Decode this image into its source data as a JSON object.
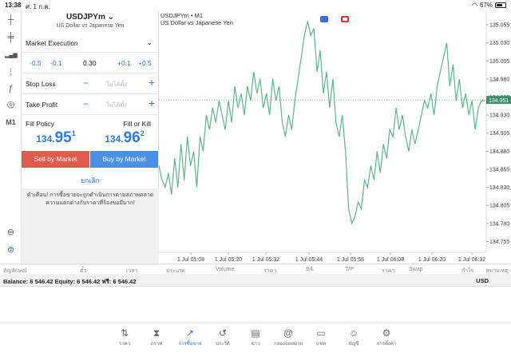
{
  "status_bar": {
    "time": "13:38",
    "date": "ศ. 1 ก.ค.",
    "battery": "67%"
  },
  "toolbar": {
    "items": [
      {
        "name": "crosshair-icon",
        "glyph": "┼"
      },
      {
        "name": "candles-icon",
        "glyph": "╪"
      },
      {
        "name": "indicators-icon",
        "glyph": "▂▄▆"
      },
      {
        "name": "settings-sliders-icon",
        "glyph": "⫶"
      },
      {
        "name": "function-icon",
        "glyph": "ƒ"
      },
      {
        "name": "objects-icon",
        "glyph": "◎"
      }
    ],
    "timeframe": "M1"
  },
  "order_panel": {
    "symbol": "USDJPYm",
    "symbol_desc": "US Dollar vs Japanese Yen",
    "execution": "Market Execution",
    "volume": {
      "minus_05": "-0.5",
      "minus_01": "-0.1",
      "value": "0.30",
      "plus_01": "+0.1",
      "plus_05": "+0.5"
    },
    "stop_loss": {
      "label": "Stop Loss",
      "placeholder": "ไม่ได้ตั้ง"
    },
    "take_profit": {
      "label": "Take Profit",
      "placeholder": "ไม่ได้ตั้ง"
    },
    "fill_policy": {
      "label": "Fill Policy",
      "value": "Fill or Kill"
    },
    "bid": {
      "prefix": "134.",
      "big": "95",
      "sup": "1"
    },
    "ask": {
      "prefix": "134.",
      "big": "96",
      "sup": "2"
    },
    "sell_label": "Sell by Market",
    "buy_label": "Buy by Market",
    "cancel_label": "ยกเลิก",
    "warning": "คำเตือน! การซื้อขายจะถูกดำเนินการตามสภาพตลาด ความแตกต่างกับราคาที่ร้องขอมีมาก!"
  },
  "chart_data": {
    "type": "line",
    "symbol": "USDJPYm • M1",
    "desc": "US Dollar vs Japanese Yen",
    "x_ticks": [
      "1 Jul 05:08",
      "1 Jul 05:20",
      "1 Jul 05:32",
      "1 Jul 05:44",
      "1 Jul 05:56",
      "1 Jul 06:08",
      "1 Jul 06:20",
      "1 Jul 06:32"
    ],
    "y_ticks": [
      "135.055",
      "135.030",
      "135.005",
      "134.980",
      "134.955",
      "134.930",
      "134.905",
      "134.880",
      "134.855",
      "134.830",
      "134.805",
      "134.780",
      "134.755"
    ],
    "ylim": [
      134.74,
      135.065
    ],
    "current_price": 134.951,
    "current_label": "134.951",
    "values": [
      134.86,
      134.84,
      134.83,
      134.85,
      134.82,
      134.87,
      134.83,
      134.89,
      134.84,
      134.9,
      134.86,
      134.88,
      134.83,
      134.9,
      134.88,
      134.93,
      134.91,
      134.94,
      134.92,
      134.95,
      134.93,
      134.91,
      134.95,
      134.92,
      134.97,
      134.94,
      134.96,
      134.93,
      134.97,
      134.95,
      134.99,
      134.96,
      134.98,
      134.94,
      134.96,
      134.93,
      134.98,
      134.95,
      134.97,
      134.92,
      134.9,
      134.93,
      134.91,
      134.95,
      134.98,
      135.01,
      135.04,
      135.06,
      135.04,
      135.05,
      134.99,
      135.02,
      134.96,
      134.99,
      134.94,
      134.98,
      134.92,
      134.9,
      134.93,
      134.88,
      134.8,
      134.78,
      134.79,
      134.81,
      134.8,
      134.84,
      134.83,
      134.86,
      134.84,
      134.88,
      134.85,
      134.89,
      134.87,
      134.91,
      134.9,
      134.94,
      134.91,
      134.93,
      134.9,
      134.88,
      134.91,
      134.89,
      134.91,
      134.93,
      134.95,
      134.94,
      134.96,
      134.93,
      134.97,
      134.99,
      135.01,
      135.03,
      134.97,
      135.0,
      134.95,
      134.98,
      134.94,
      134.96,
      134.93,
      134.95,
      134.91,
      134.94,
      134.95,
      134.95
    ]
  },
  "trade_columns": [
    "สัญลักษณ์",
    "ตั๋ว",
    "เวลา",
    "ประเภท",
    "Volume",
    "ราคา",
    "S/L",
    "T/P",
    "ราคา",
    "Swap",
    "กำไร",
    "หมายเหตุ"
  ],
  "balance": {
    "text": "Balance: 6 546.42 Equity: 6 546.42 ฟรี: 6 546.42",
    "currency": "USD"
  },
  "tabs": [
    {
      "name": "quotes",
      "icon": "⇅",
      "label": "ราคา"
    },
    {
      "name": "chart",
      "icon": "⧗",
      "label": "กราฟ"
    },
    {
      "name": "trade",
      "icon": "↗",
      "label": "การซื้อขาย"
    },
    {
      "name": "history",
      "icon": "↺",
      "label": "ประวัติ"
    },
    {
      "name": "news",
      "icon": "▤",
      "label": "ข่าว"
    },
    {
      "name": "mailbox",
      "icon": "@",
      "label": "กล่องจดหมาย"
    },
    {
      "name": "chat",
      "icon": "▭",
      "label": "แชท"
    },
    {
      "name": "accounts",
      "icon": "☺",
      "label": "บัญชี"
    },
    {
      "name": "settings",
      "icon": "⚙",
      "label": "การตั้งค่า"
    }
  ],
  "colors": {
    "accent": "#2c7be0",
    "sell": "#e25a4c",
    "buy": "#4b8fe6",
    "line": "#5cb58a",
    "price_tag": "#3d8c6a"
  }
}
